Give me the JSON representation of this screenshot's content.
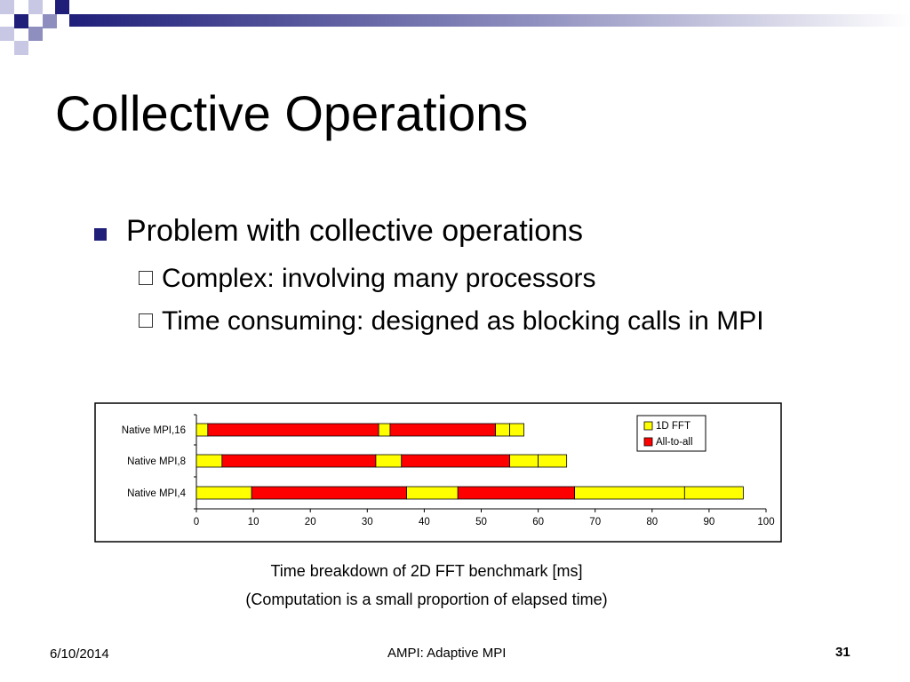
{
  "slide": {
    "title": "Collective Operations",
    "bullet": "Problem with collective operations",
    "sub_bullets": [
      "Complex: involving many processors",
      "Time consuming: designed as blocking calls in MPI"
    ],
    "caption_line1": "Time breakdown of 2D FFT benchmark [ms]",
    "caption_line2": "(Computation is a small proportion of elapsed time)",
    "footer": {
      "date": "6/10/2014",
      "center": "AMPI: Adaptive MPI",
      "page": "31"
    }
  },
  "colors": {
    "accent": "#1f1f7a",
    "fft": "#ffff00",
    "alltoall": "#ff0000"
  },
  "chart_data": {
    "type": "bar",
    "orientation": "horizontal",
    "stacked": true,
    "categories": [
      "Native MPI,16",
      "Native MPI,8",
      "Native MPI,4"
    ],
    "xlim": [
      0,
      100
    ],
    "xticks": [
      "0",
      "10",
      "20",
      "30",
      "40",
      "50",
      "60",
      "70",
      "80",
      "90",
      "100"
    ],
    "legend": [
      "1D FFT",
      "All-to-all"
    ],
    "legend_position": "top-right",
    "segments": [
      [
        {
          "series": "1D FFT",
          "value": 2
        },
        {
          "series": "All-to-all",
          "value": 30
        },
        {
          "series": "1D FFT",
          "value": 2
        },
        {
          "series": "All-to-all",
          "value": 18.5
        },
        {
          "series": "1D FFT",
          "value": 2.5
        },
        {
          "series": "1D FFT",
          "value": 2.5
        }
      ],
      [
        {
          "series": "1D FFT",
          "value": 4.5
        },
        {
          "series": "All-to-all",
          "value": 27
        },
        {
          "series": "1D FFT",
          "value": 4.5
        },
        {
          "series": "All-to-all",
          "value": 19
        },
        {
          "series": "1D FFT",
          "value": 5
        },
        {
          "series": "1D FFT",
          "value": 5
        }
      ],
      [
        {
          "series": "1D FFT",
          "value": 9.7
        },
        {
          "series": "All-to-all",
          "value": 27.2
        },
        {
          "series": "1D FFT",
          "value": 9
        },
        {
          "series": "All-to-all",
          "value": 20.5
        },
        {
          "series": "1D FFT",
          "value": 19.3
        },
        {
          "series": "1D FFT",
          "value": 10.3
        }
      ]
    ]
  }
}
